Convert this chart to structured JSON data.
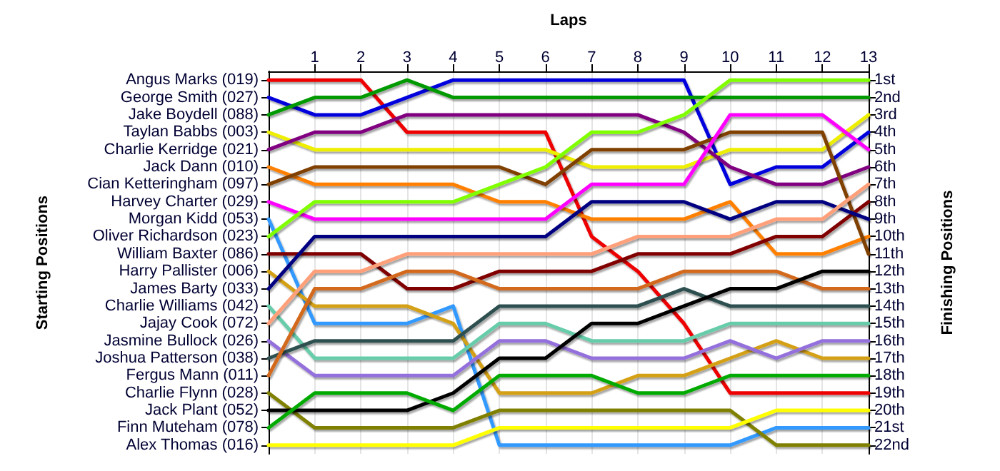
{
  "chart_data": {
    "type": "line",
    "xlabel": "Laps",
    "ylabel": "Finishing Positions",
    "x": [
      0,
      1,
      2,
      3,
      4,
      5,
      6,
      7,
      8,
      9,
      10,
      11,
      12,
      13
    ],
    "xlim": [
      0,
      13
    ],
    "xticks": [
      1,
      2,
      3,
      4,
      5,
      6,
      7,
      8,
      9,
      10,
      11,
      12,
      13
    ],
    "annotations": [
      "Angus Marks (019)",
      "George Smith (027)",
      "Jake Boydell (088)",
      "Taylan Babbs (003)",
      "Charlie Kerridge (021)",
      "Jack Dann (010)",
      "Cian Ketteringham (097)",
      "Harvey Charter (029)",
      "Morgan Kidd (053)",
      "Oliver Richardson (023)",
      "William Baxter (086)",
      "Harry Pallister (006)",
      "James Barty (033)",
      "Charlie Williams (042)",
      "Jajay Cook (072)",
      "Jasmine Bullock (026)",
      "Joshua Patterson (038)",
      "Fergus Mann (011)",
      "Charlie Flynn (028)",
      "Jack Plant (052)",
      "Finn Muteham (078)",
      "Alex Thomas (016)",
      "Starting Positions"
    ],
    "ylim": [
      22.5,
      0.5
    ],
    "yticks": [
      {
        "value": 1,
        "label": "1st"
      },
      {
        "value": 2,
        "label": "2nd"
      },
      {
        "value": 3,
        "label": "3rd"
      },
      {
        "value": 4,
        "label": "4th"
      },
      {
        "value": 5,
        "label": "5th"
      },
      {
        "value": 6,
        "label": "6th"
      },
      {
        "value": 7,
        "label": "7th"
      },
      {
        "value": 8,
        "label": "8th"
      },
      {
        "value": 9,
        "label": "9th"
      },
      {
        "value": 10,
        "label": "10th"
      },
      {
        "value": 11,
        "label": "11th"
      },
      {
        "value": 12,
        "label": "12th"
      },
      {
        "value": 13,
        "label": "13th"
      },
      {
        "value": 14,
        "label": "14th"
      },
      {
        "value": 15,
        "label": "15th"
      },
      {
        "value": 16,
        "label": "16th"
      },
      {
        "value": 17,
        "label": "17th"
      },
      {
        "value": 18,
        "label": "18th"
      },
      {
        "value": 19,
        "label": "19th"
      },
      {
        "value": 20,
        "label": "20th"
      },
      {
        "value": 21,
        "label": "21st"
      },
      {
        "value": 22,
        "label": "22nd"
      }
    ],
    "series": [
      {
        "color": "#ee0000",
        "values": [
          1,
          1,
          1,
          4,
          4,
          4,
          4,
          10,
          12,
          15,
          19,
          19,
          19,
          19
        ]
      },
      {
        "color": "#0000dd",
        "values": [
          2,
          3,
          3,
          2,
          1,
          1,
          1,
          1,
          1,
          1,
          7,
          6,
          6,
          4
        ]
      },
      {
        "color": "#009900",
        "values": [
          3,
          2,
          2,
          1,
          2,
          2,
          2,
          2,
          2,
          2,
          2,
          2,
          2,
          2
        ]
      },
      {
        "color": "#eeee00",
        "values": [
          4,
          5,
          5,
          5,
          5,
          5,
          5,
          6,
          6,
          6,
          5,
          5,
          5,
          3
        ]
      },
      {
        "color": "#800080",
        "values": [
          5,
          4,
          4,
          3,
          3,
          3,
          3,
          3,
          3,
          4,
          6,
          7,
          7,
          6
        ]
      },
      {
        "color": "#ff8000",
        "values": [
          6,
          7,
          7,
          7,
          7,
          8,
          8,
          9,
          9,
          9,
          8,
          11,
          11,
          10
        ]
      },
      {
        "color": "#804000",
        "values": [
          7,
          6,
          6,
          6,
          6,
          6,
          7,
          5,
          5,
          5,
          4,
          4,
          4,
          11
        ]
      },
      {
        "color": "#ff00ff",
        "values": [
          8,
          9,
          9,
          9,
          9,
          9,
          9,
          7,
          7,
          7,
          3,
          3,
          3,
          5
        ]
      },
      {
        "color": "#3399ff",
        "values": [
          9,
          15,
          15,
          15,
          14,
          22,
          22,
          22,
          22,
          22,
          22,
          21,
          21,
          21
        ]
      },
      {
        "color": "#80ff00",
        "values": [
          10,
          8,
          8,
          8,
          8,
          7,
          6,
          4,
          4,
          3,
          1,
          1,
          1,
          1
        ]
      },
      {
        "color": "#800000",
        "values": [
          11,
          11,
          11,
          13,
          13,
          12,
          12,
          12,
          11,
          11,
          11,
          10,
          10,
          8
        ]
      },
      {
        "color": "#d4a017",
        "values": [
          12,
          14,
          14,
          14,
          15,
          19,
          19,
          19,
          18,
          18,
          17,
          16,
          17,
          17
        ]
      },
      {
        "color": "#000080",
        "values": [
          13,
          10,
          10,
          10,
          10,
          10,
          10,
          8,
          8,
          8,
          9,
          8,
          8,
          9
        ]
      },
      {
        "color": "#66ccaa",
        "values": [
          14,
          17,
          17,
          17,
          17,
          15,
          15,
          16,
          16,
          16,
          15,
          15,
          15,
          15
        ]
      },
      {
        "color": "#ffa07a",
        "values": [
          15,
          12,
          12,
          11,
          11,
          11,
          11,
          11,
          10,
          10,
          10,
          9,
          9,
          7
        ]
      },
      {
        "color": "#9370db",
        "values": [
          16,
          18,
          18,
          18,
          18,
          16,
          16,
          17,
          17,
          17,
          16,
          17,
          16,
          16
        ]
      },
      {
        "color": "#2f4f4f",
        "values": [
          17,
          16,
          16,
          16,
          16,
          14,
          14,
          14,
          14,
          13,
          14,
          14,
          14,
          14
        ]
      },
      {
        "color": "#d2691e",
        "values": [
          18,
          13,
          13,
          12,
          12,
          13,
          13,
          13,
          13,
          12,
          12,
          12,
          13,
          13
        ]
      },
      {
        "color": "#808000",
        "values": [
          19,
          21,
          21,
          21,
          21,
          20,
          20,
          20,
          20,
          20,
          20,
          22,
          22,
          22
        ]
      },
      {
        "color": "#000000",
        "values": [
          20,
          20,
          20,
          20,
          19,
          17,
          17,
          15,
          15,
          14,
          13,
          13,
          12,
          12
        ]
      },
      {
        "color": "#00aa00",
        "values": [
          21,
          19,
          19,
          19,
          20,
          18,
          18,
          18,
          19,
          19,
          18,
          18,
          18,
          18
        ]
      },
      {
        "color": "#ffff00",
        "values": [
          22,
          22,
          22,
          22,
          22,
          21,
          21,
          21,
          21,
          21,
          21,
          20,
          20,
          20
        ]
      }
    ],
    "grid": "x",
    "marker": "none",
    "line_style": "solid"
  }
}
